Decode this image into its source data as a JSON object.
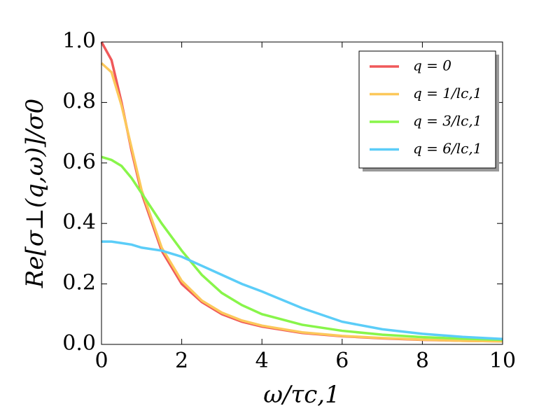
{
  "chart_data": {
    "type": "line",
    "xlabel": "ω/τc,1",
    "ylabel": "Re[σ⊥(q,ω)]/σ0",
    "x": [
      0,
      0.25,
      0.5,
      0.75,
      1,
      1.5,
      2,
      2.5,
      3,
      3.5,
      4,
      5,
      6,
      7,
      8,
      9,
      10
    ],
    "series": [
      {
        "name": "q = 0",
        "color": "#f0595a",
        "values": [
          1,
          0.94,
          0.8,
          0.64,
          0.5,
          0.31,
          0.2,
          0.14,
          0.1,
          0.075,
          0.059,
          0.038,
          0.027,
          0.02,
          0.015,
          0.012,
          0.01
        ]
      },
      {
        "name": "q = 1/lc,1",
        "color": "#fcc85a",
        "values": [
          0.93,
          0.9,
          0.79,
          0.65,
          0.51,
          0.32,
          0.21,
          0.145,
          0.105,
          0.079,
          0.062,
          0.04,
          0.028,
          0.021,
          0.016,
          0.012,
          0.01
        ]
      },
      {
        "name": "q = 3/lc,1",
        "color": "#88f54a",
        "values": [
          0.62,
          0.61,
          0.59,
          0.55,
          0.5,
          0.4,
          0.31,
          0.23,
          0.17,
          0.13,
          0.1,
          0.065,
          0.045,
          0.032,
          0.024,
          0.019,
          0.015
        ]
      },
      {
        "name": "q = 6/lc,1",
        "color": "#5bcdf8",
        "values": [
          0.34,
          0.34,
          0.335,
          0.33,
          0.32,
          0.31,
          0.29,
          0.26,
          0.23,
          0.2,
          0.175,
          0.12,
          0.075,
          0.05,
          0.035,
          0.025,
          0.018
        ]
      }
    ],
    "xlim": [
      0,
      10
    ],
    "xticks": [
      0,
      2,
      4,
      6,
      8,
      10
    ],
    "ylim": [
      0,
      1
    ],
    "yticks": [
      {
        "value": 0,
        "label": "0.0"
      },
      {
        "value": 0.2,
        "label": "0.2"
      },
      {
        "value": 0.4,
        "label": "0.4"
      },
      {
        "value": 0.6,
        "label": "0.6"
      },
      {
        "value": 0.8,
        "label": "0.8"
      },
      {
        "value": 1,
        "label": "1.0"
      }
    ],
    "legend": "upper right",
    "grid": false
  }
}
